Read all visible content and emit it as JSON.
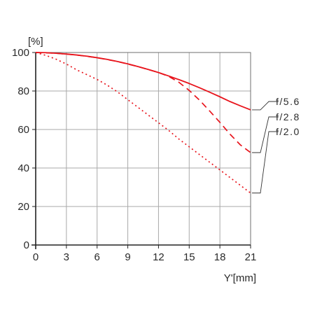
{
  "chart_data": {
    "type": "line",
    "ylabel": "[%]",
    "xlabel": "Y'[mm]",
    "xlim": [
      0,
      21
    ],
    "ylim": [
      0,
      100
    ],
    "xticks": [
      0,
      3,
      6,
      9,
      12,
      15,
      18,
      21
    ],
    "yticks": [
      0,
      20,
      40,
      60,
      80,
      100
    ],
    "grid": true,
    "line_color": "#e8141c",
    "series": [
      {
        "name": "f/5.6",
        "style": "solid",
        "x": [
          0,
          1,
          2,
          3,
          4,
          5,
          6,
          7,
          8,
          9,
          10,
          11,
          12,
          13,
          14,
          15,
          16,
          17,
          18,
          19,
          20,
          21
        ],
        "y": [
          100,
          99.9,
          99.6,
          99.2,
          98.7,
          98.1,
          97.3,
          96.4,
          95.3,
          94.1,
          92.7,
          91.2,
          89.6,
          87.8,
          85.9,
          83.9,
          81.7,
          79.4,
          77.0,
          74.5,
          72.3,
          70.2
        ]
      },
      {
        "name": "f/2.8",
        "style": "dashed",
        "x": [
          0,
          2,
          4,
          6,
          8,
          10,
          12,
          13,
          14,
          15,
          16,
          17,
          18,
          19,
          20,
          21
        ],
        "y": [
          100,
          99.6,
          98.7,
          97.3,
          95.3,
          92.7,
          89.6,
          87.6,
          84.5,
          80.3,
          75.3,
          69.6,
          63.7,
          57.5,
          52.0,
          48.0
        ]
      },
      {
        "name": "f/2.0",
        "style": "dotted",
        "x": [
          0,
          1,
          2,
          3,
          4,
          5,
          6,
          7,
          8,
          9,
          10,
          11,
          12,
          13,
          14,
          15,
          16,
          17,
          18,
          19,
          20,
          21
        ],
        "y": [
          100,
          98.5,
          96.5,
          94.0,
          91.0,
          88.5,
          86.0,
          83.0,
          79.5,
          75.5,
          71.5,
          67.5,
          63.5,
          59.5,
          55.0,
          51.0,
          47.0,
          43.0,
          39.0,
          35.0,
          31.0,
          27.0
        ]
      }
    ],
    "legend": {
      "placement": "right",
      "entries": [
        "f/5.6",
        "f/2.8",
        "f/2.0"
      ]
    }
  }
}
